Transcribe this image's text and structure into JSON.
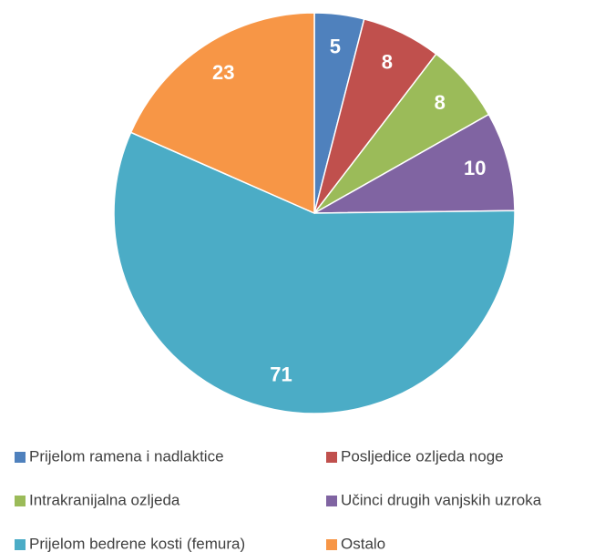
{
  "chart_data": {
    "type": "pie",
    "categories": [
      "Prijelom ramena i nadlaktice",
      "Posljedice ozljeda noge",
      "Intrakranijalna ozljeda",
      "Učinci drugih vanjskih uzroka",
      "Prijelom bedrene kosti (femura)",
      "Ostalo"
    ],
    "values": [
      5,
      8,
      8,
      10,
      71,
      23
    ],
    "colors": [
      "#4f81bd",
      "#c0504d",
      "#9bbb59",
      "#8064a2",
      "#4bacc6",
      "#f79646"
    ],
    "legend": "bottom"
  }
}
